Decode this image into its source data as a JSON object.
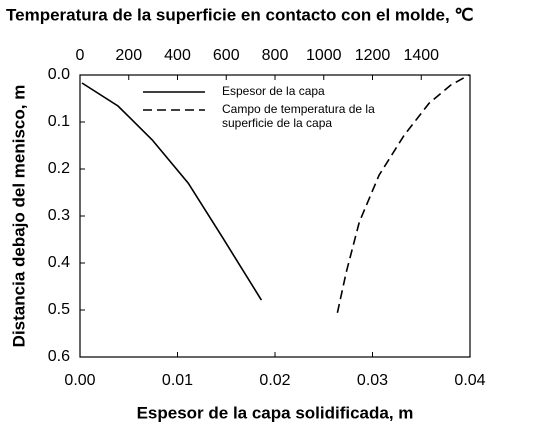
{
  "chart_data": {
    "type": "line",
    "title": "Temperatura de la superficie en contacto con el molde, ℃",
    "xlabel": "Espesor de la capa solidificada, m",
    "ylabel": "Distancia debajo del menisco, m",
    "xlim": [
      0,
      0.04
    ],
    "xticks": [
      {
        "value": 0,
        "label": "0.00"
      },
      {
        "value": 0.01,
        "label": "0.01"
      },
      {
        "value": 0.02,
        "label": "0.02"
      },
      {
        "value": 0.03,
        "label": "0.03"
      },
      {
        "value": 0.04,
        "label": "0.04"
      }
    ],
    "x2lim": [
      0,
      1600
    ],
    "x2ticks": [
      0,
      200,
      400,
      600,
      800,
      1000,
      1200,
      1400
    ],
    "ylim": [
      0,
      0.6
    ],
    "yticks": [
      {
        "value": 0,
        "label": "0.0"
      },
      {
        "value": 0.1,
        "label": "0.1"
      },
      {
        "value": 0.2,
        "label": "0.2"
      },
      {
        "value": 0.3,
        "label": "0.3"
      },
      {
        "value": 0.4,
        "label": "0.4"
      },
      {
        "value": 0.5,
        "label": "0.5"
      },
      {
        "value": 0.6,
        "label": "0.6"
      }
    ],
    "y_inverted": true,
    "series": [
      {
        "name": "Espesor de la capa",
        "color": "#000000",
        "dash": "solid",
        "x": [
          0.0002,
          0.0039,
          0.0074,
          0.0111,
          0.0146,
          0.0186
        ],
        "values": [
          0.017,
          0.066,
          0.138,
          0.23,
          0.345,
          0.479
        ]
      },
      {
        "name": "Campo de temperatura de la superficie de la capa",
        "color": "#000000",
        "dash": "dashed",
        "axis": "x2",
        "x": [
          1056,
          1092,
          1146,
          1227,
          1330,
          1432,
          1522,
          1596
        ],
        "values": [
          0.506,
          0.42,
          0.313,
          0.213,
          0.128,
          0.06,
          0.021,
          0.0
        ]
      }
    ]
  }
}
